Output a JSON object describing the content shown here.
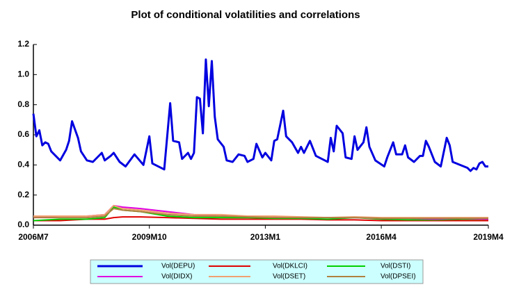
{
  "chart_data": {
    "type": "line",
    "title": "Plot of conditional volatilities and correlations",
    "xlim": [
      0,
      153
    ],
    "xticks": [
      {
        "value": 0,
        "label": "2006M7"
      },
      {
        "value": 39,
        "label": "2009M10"
      },
      {
        "value": 78,
        "label": "2013M1"
      },
      {
        "value": 117,
        "label": "2016M4"
      },
      {
        "value": 153,
        "label": "2019M4"
      }
    ],
    "ylim": [
      0,
      1.2
    ],
    "yticks": [
      {
        "value": 0,
        "label": "0.0"
      },
      0.2,
      0.4,
      0.6,
      0.8,
      {
        "value": 1,
        "label": "1.0"
      },
      1.2
    ],
    "legend_position": "bottom",
    "series": [
      {
        "name": "Vol(DEPU)",
        "color": "#0000e0",
        "width": 3,
        "x": [
          0,
          1,
          2,
          3,
          4,
          5,
          6,
          9,
          11,
          12,
          13,
          15,
          16,
          18,
          20,
          23,
          24,
          26,
          27,
          29,
          31,
          34,
          37,
          39,
          40,
          44,
          46,
          47,
          49,
          50,
          52,
          53,
          54,
          55,
          56,
          57,
          58,
          59,
          60,
          61,
          62,
          64,
          65,
          67,
          69,
          71,
          72,
          74,
          75,
          77,
          78,
          80,
          81,
          82,
          84,
          85,
          87,
          89,
          90,
          91,
          93,
          95,
          98,
          99,
          100,
          101,
          102,
          104,
          105,
          107,
          108,
          109,
          111,
          112,
          113,
          115,
          118,
          119,
          121,
          122,
          124,
          125,
          126,
          128,
          130,
          131,
          132,
          133,
          135,
          137,
          139,
          140,
          141,
          146,
          147,
          148,
          149,
          150,
          151,
          152,
          153
        ],
        "values": [
          0.74,
          0.59,
          0.63,
          0.53,
          0.55,
          0.54,
          0.49,
          0.43,
          0.5,
          0.56,
          0.69,
          0.58,
          0.49,
          0.43,
          0.42,
          0.48,
          0.43,
          0.46,
          0.48,
          0.42,
          0.39,
          0.47,
          0.4,
          0.59,
          0.41,
          0.37,
          0.81,
          0.56,
          0.55,
          0.44,
          0.48,
          0.44,
          0.48,
          0.85,
          0.84,
          0.61,
          1.1,
          0.79,
          1.09,
          0.72,
          0.57,
          0.52,
          0.43,
          0.42,
          0.47,
          0.46,
          0.42,
          0.44,
          0.54,
          0.45,
          0.48,
          0.43,
          0.56,
          0.57,
          0.76,
          0.59,
          0.55,
          0.48,
          0.52,
          0.48,
          0.56,
          0.46,
          0.43,
          0.42,
          0.58,
          0.49,
          0.66,
          0.61,
          0.45,
          0.44,
          0.59,
          0.5,
          0.55,
          0.65,
          0.52,
          0.43,
          0.39,
          0.45,
          0.55,
          0.47,
          0.47,
          0.53,
          0.45,
          0.42,
          0.46,
          0.46,
          0.56,
          0.52,
          0.42,
          0.39,
          0.58,
          0.53,
          0.42,
          0.38,
          0.36,
          0.38,
          0.37,
          0.41,
          0.42,
          0.39,
          0.39
        ]
      },
      {
        "name": "Vol(DKLCI)",
        "color": "#e00000",
        "width": 2,
        "x": [
          0,
          9,
          18,
          24,
          27,
          30,
          36,
          45,
          54,
          63,
          72,
          81,
          90,
          99,
          108,
          117,
          126,
          135,
          144,
          153
        ],
        "values": [
          0.03,
          0.03,
          0.04,
          0.04,
          0.05,
          0.055,
          0.055,
          0.05,
          0.045,
          0.04,
          0.04,
          0.04,
          0.04,
          0.035,
          0.035,
          0.03,
          0.03,
          0.03,
          0.03,
          0.03
        ]
      },
      {
        "name": "Vol(DSTI)",
        "color": "#00d000",
        "width": 2,
        "x": [
          0,
          9,
          18,
          24,
          27,
          30,
          36,
          45,
          54,
          63,
          72,
          81,
          90,
          99,
          108,
          117,
          126,
          135,
          144,
          153
        ],
        "values": [
          0.03,
          0.04,
          0.04,
          0.05,
          0.12,
          0.1,
          0.09,
          0.06,
          0.05,
          0.05,
          0.05,
          0.045,
          0.045,
          0.04,
          0.05,
          0.04,
          0.035,
          0.035,
          0.04,
          0.04
        ]
      },
      {
        "name": "Vol(DIDX)",
        "color": "#e000e0",
        "width": 2,
        "x": [
          0,
          9,
          18,
          24,
          27,
          30,
          36,
          45,
          54,
          63,
          72,
          81,
          90,
          99,
          108,
          117,
          126,
          135,
          144,
          153
        ],
        "values": [
          0.05,
          0.06,
          0.06,
          0.07,
          0.13,
          0.12,
          0.11,
          0.09,
          0.07,
          0.06,
          0.06,
          0.055,
          0.05,
          0.05,
          0.05,
          0.045,
          0.045,
          0.04,
          0.045,
          0.04
        ]
      },
      {
        "name": "Vol(DSET)",
        "color": "#f0a070",
        "width": 2,
        "x": [
          0,
          9,
          18,
          24,
          27,
          30,
          36,
          45,
          54,
          63,
          72,
          81,
          90,
          99,
          108,
          117,
          126,
          135,
          144,
          153
        ],
        "values": [
          0.06,
          0.06,
          0.06,
          0.07,
          0.13,
          0.11,
          0.1,
          0.08,
          0.07,
          0.07,
          0.06,
          0.06,
          0.055,
          0.05,
          0.055,
          0.05,
          0.05,
          0.05,
          0.05,
          0.05
        ]
      },
      {
        "name": "Vol(DPSEI)",
        "color": "#b08040",
        "width": 2,
        "x": [
          0,
          9,
          18,
          24,
          27,
          30,
          36,
          45,
          54,
          63,
          72,
          81,
          90,
          99,
          108,
          117,
          126,
          135,
          144,
          153
        ],
        "values": [
          0.05,
          0.05,
          0.05,
          0.06,
          0.11,
          0.1,
          0.09,
          0.07,
          0.06,
          0.06,
          0.055,
          0.05,
          0.05,
          0.05,
          0.05,
          0.045,
          0.045,
          0.045,
          0.045,
          0.045
        ]
      }
    ]
  }
}
